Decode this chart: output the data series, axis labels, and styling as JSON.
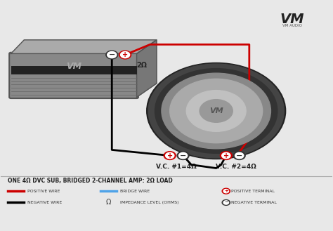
{
  "bg_color": "#e8e8e8",
  "title_text": "ONE 4Ω DVC SUB, BRIDGED 2-CHANNEL AMP: 2Ω LOAD",
  "amp_label": "2Ω",
  "vc1_label": "V.C. #1=4Ω",
  "vc2_label": "V.C. #2=4Ω",
  "logo_text": "VM",
  "logo_sub": "VM AUDIO",
  "legend": [
    {
      "color": "#cc0000",
      "label": "POSITIVE WIRE"
    },
    {
      "color": "#000000",
      "label": "NEGATIVE WIRE"
    },
    {
      "color": "#4fa3e8",
      "label": "BRIDGE WIRE"
    },
    {
      "symbol": "Ω",
      "label": "IMPEDANCE LEVEL (OHMS)"
    },
    {
      "symbol": "⊕",
      "label": "POSITIVE TERMINAL"
    },
    {
      "symbol": "⊖",
      "label": "NEGATIVE TERMINAL"
    }
  ],
  "pos_color": "#cc0000",
  "neg_color": "#000000",
  "bridge_color": "#4fa3e8"
}
